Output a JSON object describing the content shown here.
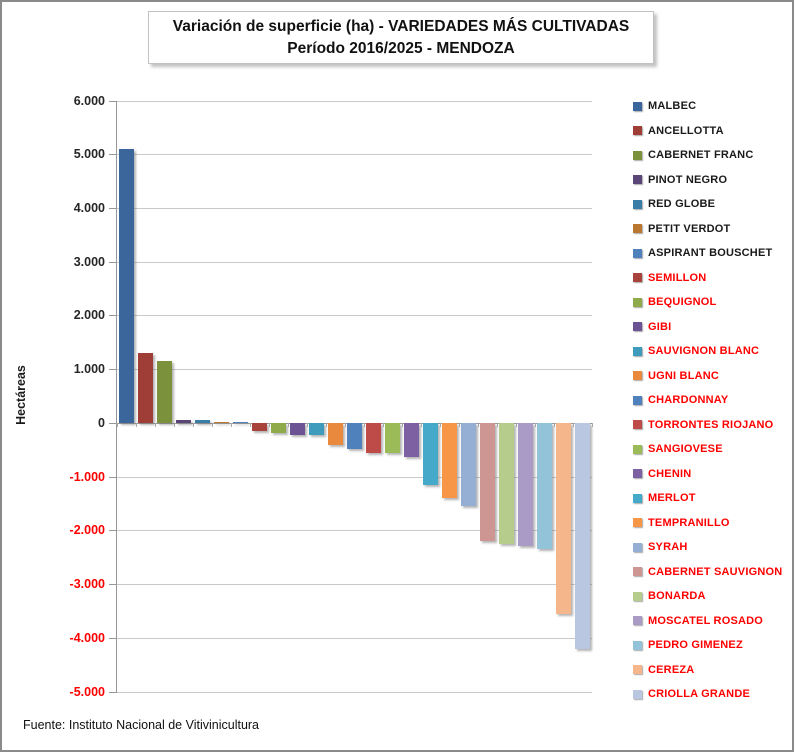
{
  "title": {
    "line1": "Variación de superficie (ha) - VARIEDADES MÁS CULTIVADAS",
    "line2": "Período 2016/2025 - MENDOZA"
  },
  "footer": {
    "source": "Fuente: Instituto Nacional de Vitivinicultura"
  },
  "colors": {
    "negative_text": "#FF0000",
    "positive_text": "#262626",
    "gridline": "#c9c9c9",
    "zero_line": "#999999"
  },
  "chart_data": {
    "type": "bar",
    "title": "Variación de superficie (ha) - VARIEDADES MÁS CULTIVADAS Período 2016/2025 - MENDOZA",
    "title_lines": [
      "Variación de superficie (ha) - VARIEDADES MÁS CULTIVADAS",
      "Período 2016/2025 - MENDOZA"
    ],
    "xlabel": "",
    "ylabel": "Hectáreas",
    "ylim": [
      -5000,
      6000
    ],
    "grid": true,
    "legend_position": "right",
    "y_ticks": [
      {
        "value": 6000,
        "label": "6.000"
      },
      {
        "value": 5000,
        "label": "5.000"
      },
      {
        "value": 4000,
        "label": "4.000"
      },
      {
        "value": 3000,
        "label": "3.000"
      },
      {
        "value": 2000,
        "label": "2.000"
      },
      {
        "value": 1000,
        "label": "1.000"
      },
      {
        "value": 0,
        "label": "0"
      },
      {
        "value": -1000,
        "label": "-1.000"
      },
      {
        "value": -2000,
        "label": "-2.000"
      },
      {
        "value": -3000,
        "label": "-3.000"
      },
      {
        "value": -4000,
        "label": "-4.000"
      },
      {
        "value": -5000,
        "label": "-5.000"
      }
    ],
    "categories": [
      "MALBEC",
      "ANCELLOTTA",
      "CABERNET FRANC",
      "PINOT NEGRO",
      "RED GLOBE",
      "PETIT VERDOT",
      "ASPIRANT BOUSCHET",
      "SEMILLON",
      "BEQUIGNOL",
      "GIBI",
      "SAUVIGNON BLANC",
      "UGNI BLANC",
      "CHARDONNAY",
      "TORRONTES RIOJANO",
      "SANGIOVESE",
      "CHENIN",
      "MERLOT",
      "TEMPRANILLO",
      "SYRAH",
      "CABERNET SAUVIGNON",
      "BONARDA",
      "MOSCATEL ROSADO",
      "PEDRO GIMENEZ",
      "CEREZA",
      "CRIOLLA GRANDE"
    ],
    "values": [
      5100,
      1300,
      1150,
      60,
      50,
      20,
      10,
      -150,
      -190,
      -235,
      -235,
      -420,
      -480,
      -560,
      -570,
      -640,
      -1150,
      -1400,
      -1550,
      -2200,
      -2250,
      -2300,
      -2350,
      -3550,
      -4200
    ],
    "bar_colors": [
      "#3A669C",
      "#9E3E36",
      "#7C913C",
      "#5A4677",
      "#3A7DA6",
      "#B9772F",
      "#4F81BD",
      "#A8433C",
      "#8FAA4B",
      "#6B5394",
      "#3E9BBC",
      "#E9893D",
      "#4F81BD",
      "#BE4B47",
      "#9BBB59",
      "#7C60A2",
      "#45A9C9",
      "#F79646",
      "#95AFD4",
      "#CE9693",
      "#B6CC8D",
      "#A99BC6",
      "#92C3D8",
      "#F6B68C",
      "#B9C7E0"
    ],
    "legend_text_colors": [
      "#1a1a1a",
      "#1a1a1a",
      "#1a1a1a",
      "#1a1a1a",
      "#1a1a1a",
      "#1a1a1a",
      "#1a1a1a",
      "#FF0000",
      "#FF0000",
      "#FF0000",
      "#FF0000",
      "#FF0000",
      "#FF0000",
      "#FF0000",
      "#FF0000",
      "#FF0000",
      "#FF0000",
      "#FF0000",
      "#FF0000",
      "#FF0000",
      "#FF0000",
      "#FF0000",
      "#FF0000",
      "#FF0000",
      "#FF0000"
    ]
  }
}
